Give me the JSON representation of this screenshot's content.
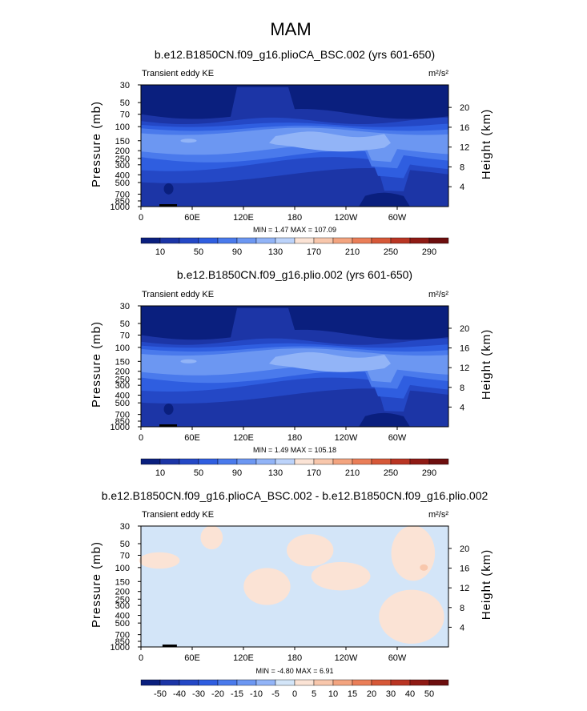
{
  "figure": {
    "season": "MAM",
    "panels": [
      {
        "title": "b.e12.B1850CN.f09_g16.plioCA_BSC.002 (yrs 601-650)",
        "left_label": "Transient eddy KE",
        "units": "m²/s²",
        "stats": "MIN =    1.47   MAX = 107.09",
        "colorbar_labels": [
          "10",
          "50",
          "90",
          "130",
          "170",
          "210",
          "250",
          "290"
        ]
      },
      {
        "title": "b.e12.B1850CN.f09_g16.plio.002 (yrs 601-650)",
        "left_label": "Transient eddy KE",
        "units": "m²/s²",
        "stats": "MIN =    1.49   MAX = 105.18",
        "colorbar_labels": [
          "10",
          "50",
          "90",
          "130",
          "170",
          "210",
          "250",
          "290"
        ]
      },
      {
        "title": "b.e12.B1850CN.f09_g16.plioCA_BSC.002 - b.e12.B1850CN.f09_g16.plio.002",
        "left_label": "Transient eddy KE",
        "units": "m²/s²",
        "stats": "MIN =   -4.80   MAX =    6.91",
        "colorbar_labels": [
          "-50",
          "-40",
          "-30",
          "-20",
          "-15",
          "-10",
          "-5",
          "0",
          "5",
          "10",
          "15",
          "20",
          "30",
          "40",
          "50"
        ]
      }
    ]
  },
  "chart_data": {
    "type": "heatmap",
    "title": "MAM",
    "x_ticks": [
      "0",
      "60E",
      "120E",
      "180",
      "120W",
      "60W"
    ],
    "x_values": [
      0,
      60,
      120,
      180,
      240,
      300
    ],
    "xlim": [
      0,
      360
    ],
    "y_ticks": [
      "30",
      "50",
      "70",
      "100",
      "150",
      "200",
      "250",
      "300",
      "400",
      "500",
      "700",
      "850",
      "1000"
    ],
    "ylim": [
      1000,
      30
    ],
    "yscale": "log",
    "ylabel": "Pressure (mb)",
    "y2_ticks": [
      "20",
      "16",
      "12",
      "8",
      "4"
    ],
    "y2label": "Height (km)",
    "abs_colors": [
      "#0a1f7e",
      "#1c35a6",
      "#2448c6",
      "#2f5ee0",
      "#4a7aec",
      "#6c97f2",
      "#92b4f7",
      "#bcd3fa",
      "#fbe3d5",
      "#f8c7ac",
      "#f3a47f",
      "#ea7e58",
      "#d65838",
      "#b93523",
      "#8f1a14",
      "#6d0e0e"
    ],
    "diff_colors": [
      "#0a1f7e",
      "#1c35a6",
      "#2448c6",
      "#2f5ee0",
      "#4a7aec",
      "#6c97f2",
      "#92b4f7",
      "#d3e5f8",
      "#fbe3d5",
      "#f8c7ac",
      "#f3a47f",
      "#ea7e58",
      "#d65838",
      "#b93523",
      "#8f1a14",
      "#6d0e0e"
    ],
    "panels": [
      {
        "name": "b.e12.B1850CN.f09_g16.plioCA_BSC.002 (yrs 601-650)",
        "min": 1.47,
        "max": 107.09,
        "levels": [
          10,
          50,
          90,
          130,
          170,
          210,
          250,
          290
        ]
      },
      {
        "name": "b.e12.B1850CN.f09_g16.plio.002 (yrs 601-650)",
        "min": 1.49,
        "max": 105.18,
        "levels": [
          10,
          50,
          90,
          130,
          170,
          210,
          250,
          290
        ]
      },
      {
        "name": "b.e12.B1850CN.f09_g16.plioCA_BSC.002 - b.e12.B1850CN.f09_g16.plio.002",
        "min": -4.8,
        "max": 6.91,
        "levels": [
          -50,
          -40,
          -30,
          -20,
          -15,
          -10,
          -5,
          0,
          5,
          10,
          15,
          20,
          30,
          40,
          50
        ]
      }
    ]
  }
}
